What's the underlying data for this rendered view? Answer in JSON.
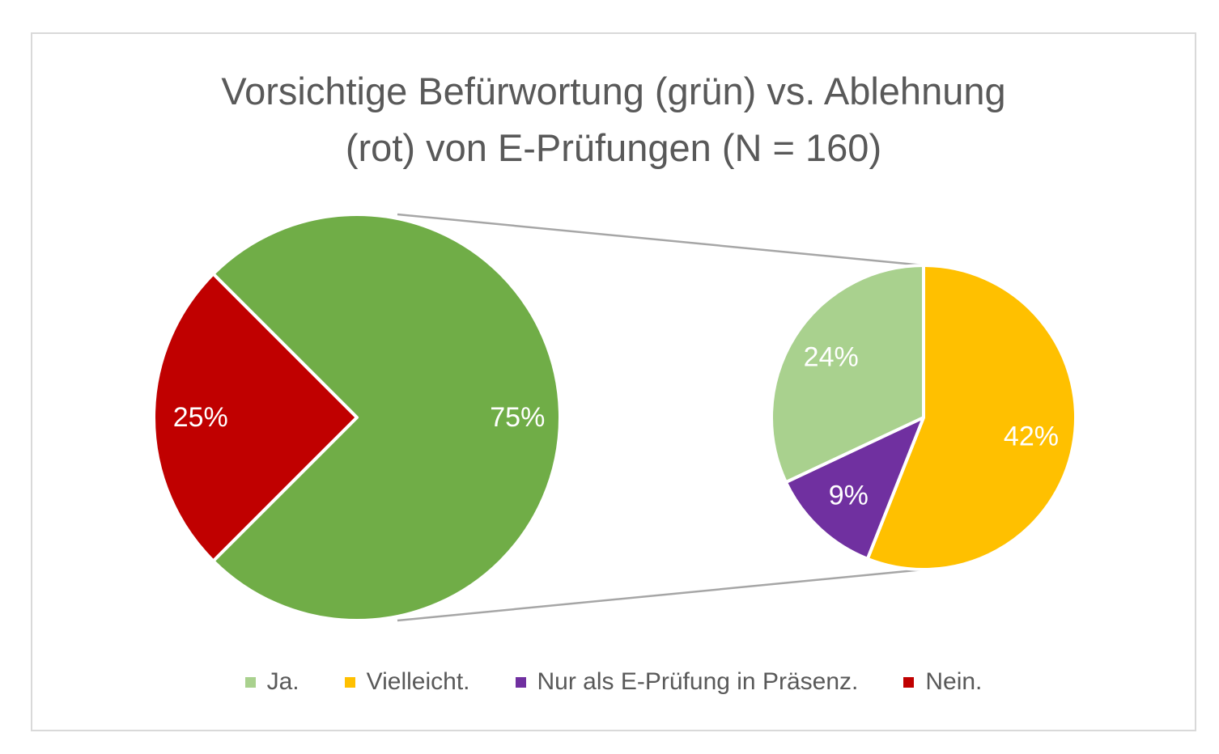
{
  "title_line1": "Vorsichtige Befürwortung (grün) vs. Ablehnung",
  "title_line2": "(rot) von E-Prüfungen (N = 160)",
  "chart_data": {
    "type": "pie",
    "subtype": "pie-of-pie",
    "main_pie": {
      "slices": [
        {
          "label": "Nein.",
          "value": 25,
          "data_label": "25%",
          "color": "#c00000"
        },
        {
          "label": "Ja. + Vielleicht. + Nur als E-Prüfung in Präsenz.",
          "value": 75,
          "data_label": "75%",
          "color": "#70ad47"
        }
      ]
    },
    "secondary_pie": {
      "slices": [
        {
          "label": "Vielleicht.",
          "value": 42,
          "data_label": "42%",
          "color": "#ffc000"
        },
        {
          "label": "Nur als E-Prüfung in Präsenz.",
          "value": 9,
          "data_label": "9%",
          "color": "#7030a0"
        },
        {
          "label": "Ja.",
          "value": 24,
          "data_label": "24%",
          "color": "#a9d18e"
        }
      ]
    },
    "legend": [
      {
        "label": "Ja.",
        "color": "#a9d18e"
      },
      {
        "label": "Vielleicht.",
        "color": "#ffc000"
      },
      {
        "label": "Nur als E-Prüfung in Präsenz.",
        "color": "#7030a0"
      },
      {
        "label": "Nein.",
        "color": "#c00000"
      }
    ],
    "legend_position": "bottom"
  }
}
